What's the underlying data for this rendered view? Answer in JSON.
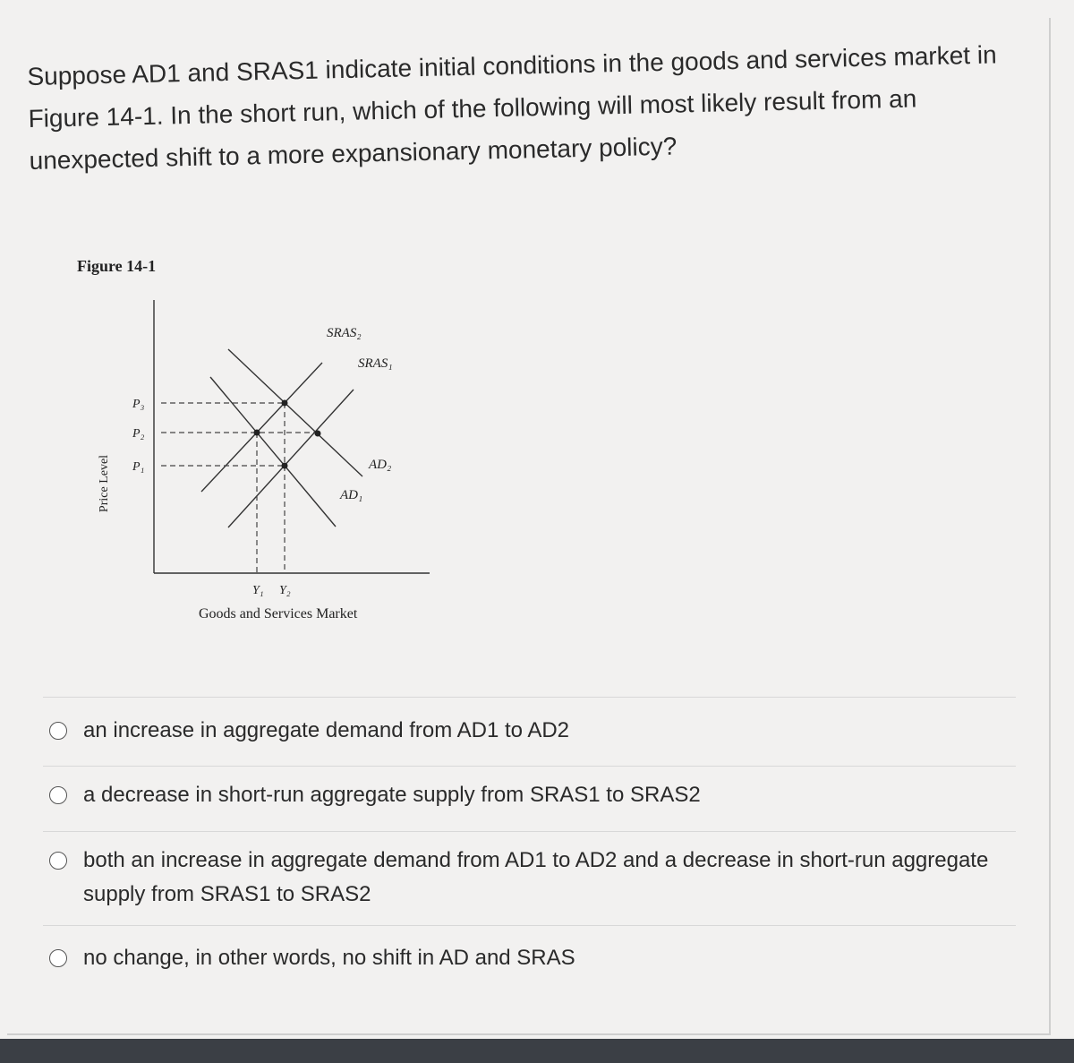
{
  "question": "Suppose AD1 and SRAS1 indicate initial conditions in the goods and services market in Figure 14-1. In the short run, which of the following will most likely result from an unexpected shift to a more expansionary monetary policy?",
  "figure": {
    "title": "Figure 14-1",
    "y_axis_label": "Price Level",
    "x_axis_label": "Goods and Services Market",
    "curves": {
      "sras2": "SRAS₂",
      "sras1": "SRAS₁",
      "ad2": "AD₂",
      "ad1": "AD₁"
    },
    "prices": {
      "p3": "P₃",
      "p2": "P₂",
      "p1": "P₁"
    },
    "outputs": {
      "y1": "Y₁",
      "y2": "Y₂"
    }
  },
  "options": [
    "an increase in aggregate demand from AD1 to AD2",
    "a decrease in short-run aggregate supply from SRAS1 to SRAS2",
    "both an increase in aggregate demand from AD1 to AD2 and a decrease in short-run aggregate supply from SRAS1 to SRAS2",
    "no change, in other words, no shift in AD and SRAS"
  ]
}
